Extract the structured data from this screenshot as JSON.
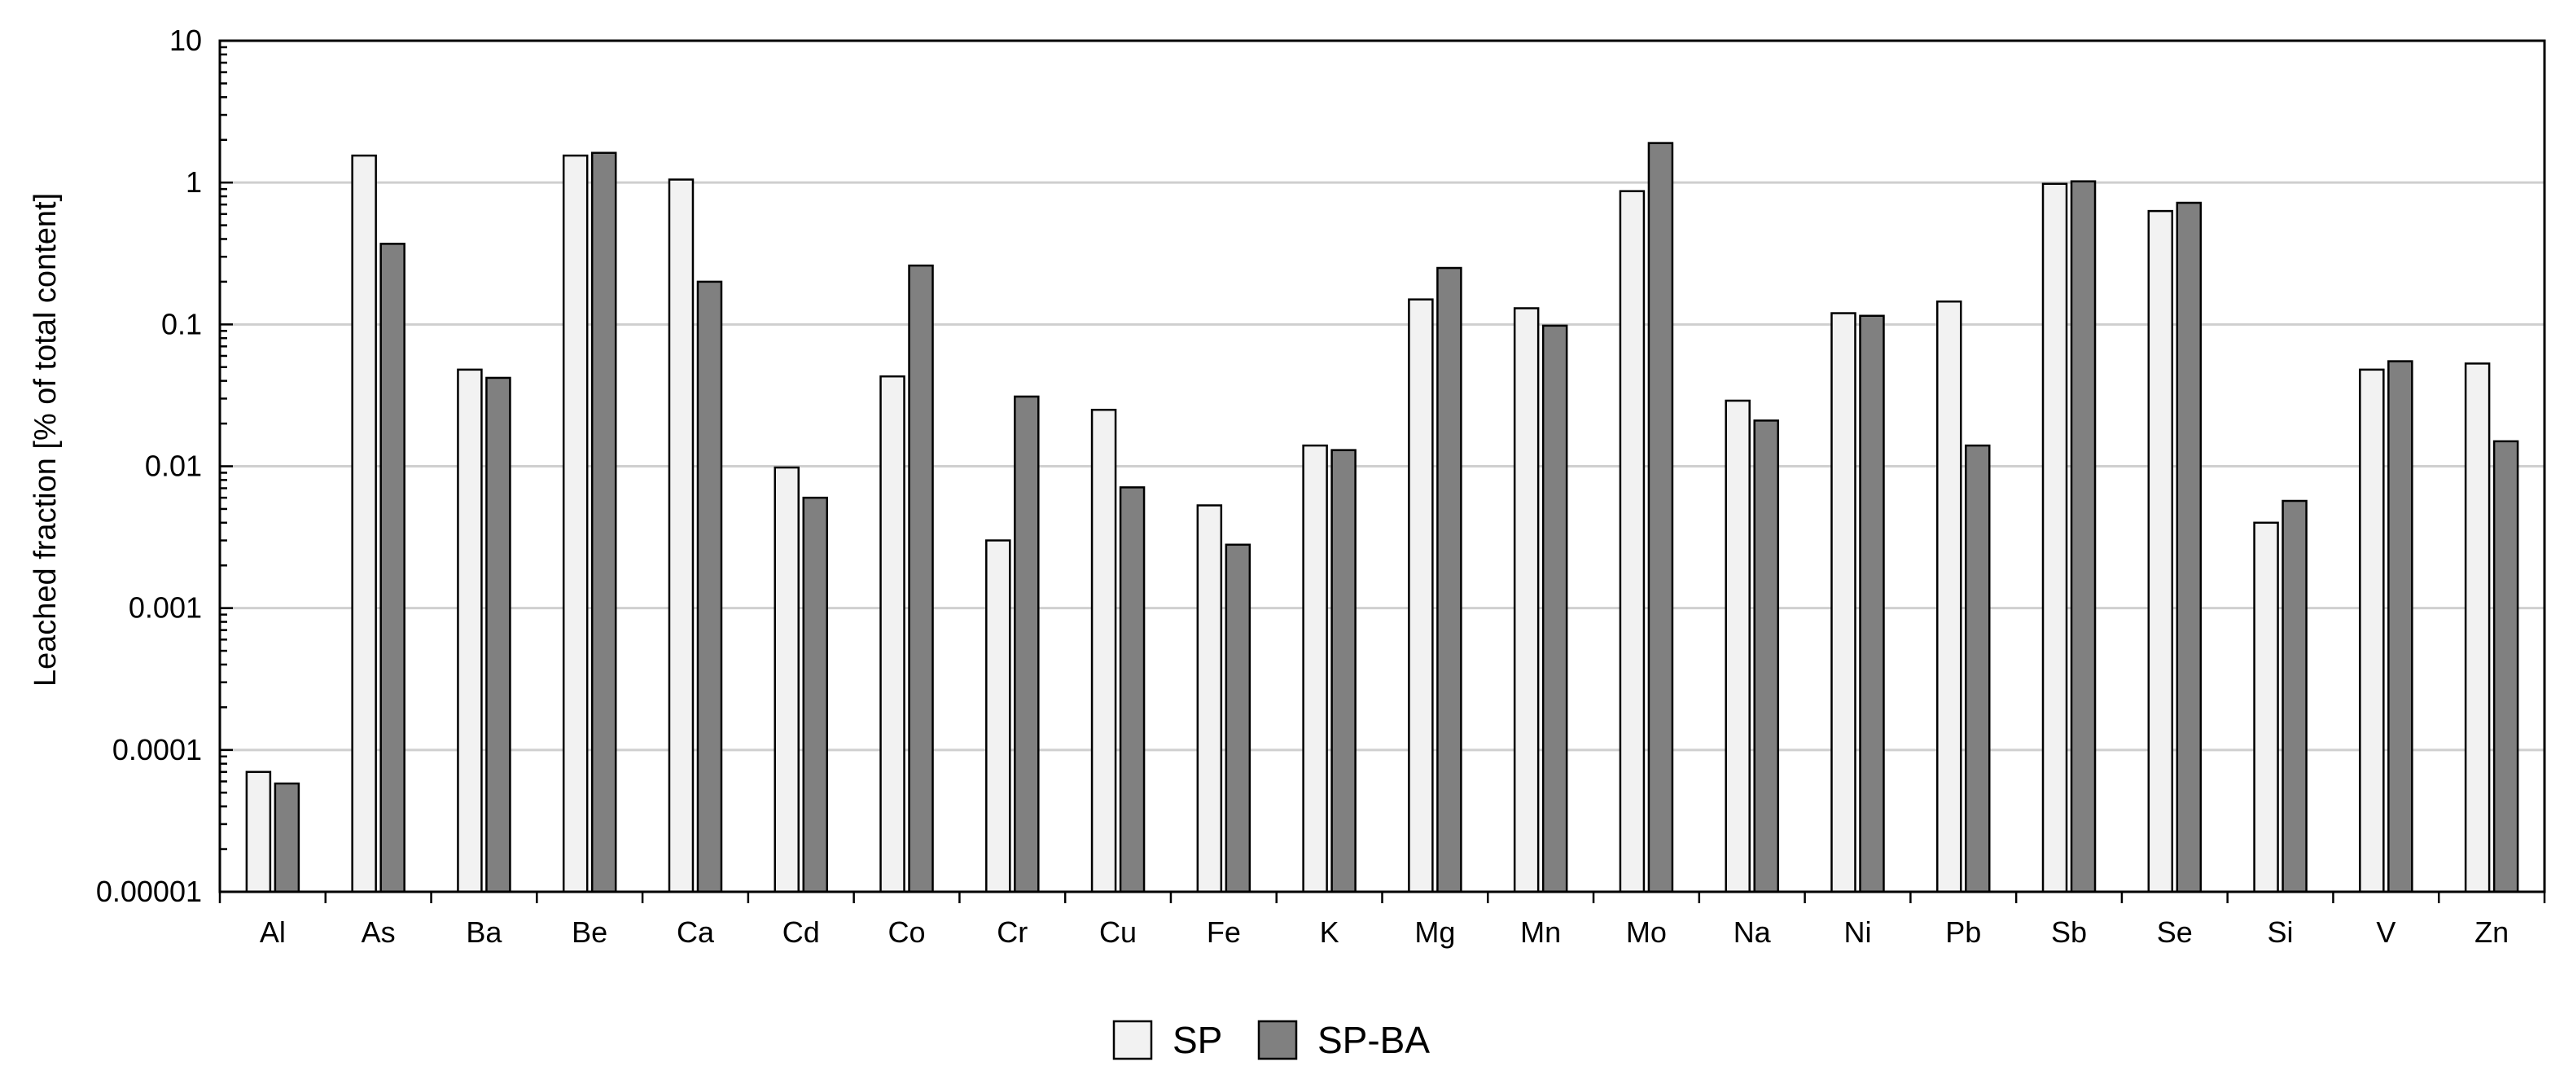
{
  "chart_data": {
    "type": "bar",
    "title": "",
    "xlabel": "",
    "ylabel": "Leached fraction [% of total content]",
    "yscale": "log",
    "ylim": [
      1e-05,
      10
    ],
    "yticks": [
      "0.00001",
      "0.0001",
      "0.001",
      "0.01",
      "0.1",
      "1",
      "10"
    ],
    "grid": "horizontal at major ticks",
    "legend_position": "bottom-center",
    "categories": [
      "Al",
      "As",
      "Ba",
      "Be",
      "Ca",
      "Cd",
      "Co",
      "Cr",
      "Cu",
      "Fe",
      "K",
      "Mg",
      "Mn",
      "Mo",
      "Na",
      "Ni",
      "Pb",
      "Sb",
      "Se",
      "Si",
      "V",
      "Zn"
    ],
    "series": [
      {
        "name": "SP",
        "color": "#f2f2f2",
        "values": [
          7e-05,
          1.55,
          0.048,
          1.55,
          1.05,
          0.0098,
          0.043,
          0.003,
          0.025,
          0.0053,
          0.014,
          0.15,
          0.13,
          0.87,
          0.029,
          0.12,
          0.145,
          0.98,
          0.63,
          0.004,
          0.048,
          0.053
        ]
      },
      {
        "name": "SP-BA",
        "color": "#808080",
        "values": [
          5.8e-05,
          0.37,
          0.042,
          1.62,
          0.2,
          0.006,
          0.26,
          0.031,
          0.0071,
          0.0028,
          0.013,
          0.25,
          0.098,
          1.9,
          0.021,
          0.115,
          0.014,
          1.02,
          0.72,
          0.0057,
          0.055,
          0.015
        ]
      }
    ]
  }
}
